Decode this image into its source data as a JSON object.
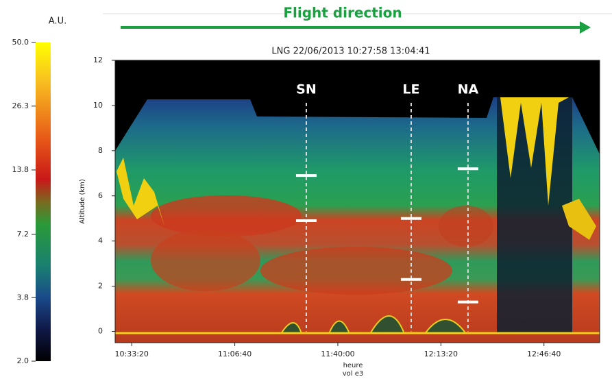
{
  "chart_data": {
    "type": "lidar-profile",
    "header": "Flight direction",
    "title": "LNG 22/06/2013 10:27:58 13:04:41",
    "y_label": "Altitude (km)",
    "x_label": "heure",
    "x_sublabel": "vol e3",
    "xlim": [
      37678,
      47081
    ],
    "xticks": [
      {
        "value": 38000,
        "label": "10:33:20"
      },
      {
        "value": 40000,
        "label": "11:06:40"
      },
      {
        "value": 42000,
        "label": "11:40:00"
      },
      {
        "value": 44000,
        "label": "12:13:20"
      },
      {
        "value": 46000,
        "label": "12:46:40"
      }
    ],
    "ylim": [
      -0.5,
      12
    ],
    "yticks": [
      0,
      2,
      4,
      6,
      8,
      10,
      12
    ],
    "sites": [
      {
        "name": "SN",
        "x": 41388,
        "values": [
          6.9,
          4.9
        ]
      },
      {
        "name": "LE",
        "x": 43423,
        "values": [
          5.0,
          2.3
        ]
      },
      {
        "name": "NA",
        "x": 44526,
        "values": [
          7.2,
          1.3
        ]
      }
    ],
    "colorbar": {
      "label": "A.U.",
      "log": true,
      "lim": [
        2,
        50
      ],
      "ticks": [
        {
          "value": 2,
          "label": "2.0"
        },
        {
          "value": 3.8,
          "label": "3.8"
        },
        {
          "value": 7.2,
          "label": "7.2"
        },
        {
          "value": 13.8,
          "label": "13.8"
        },
        {
          "value": 26.3,
          "label": "26.3"
        },
        {
          "value": 50,
          "label": "50.0"
        }
      ]
    }
  }
}
